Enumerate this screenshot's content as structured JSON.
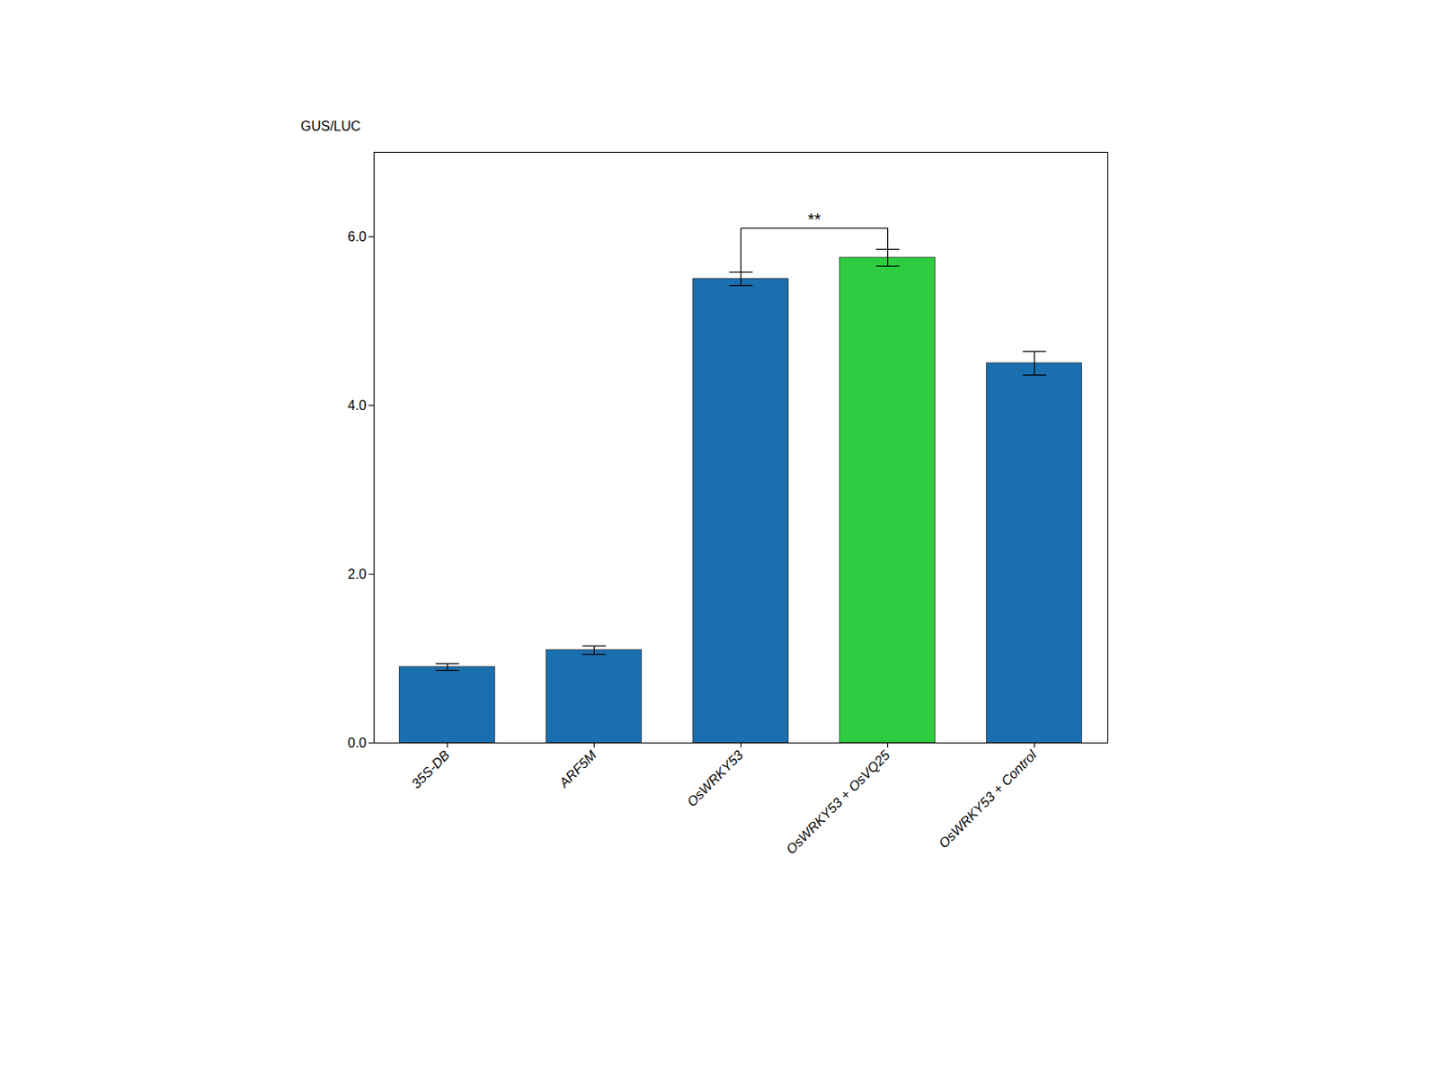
{
  "chart_data": {
    "type": "bar",
    "categories": [
      "35S-DB",
      "ARF5M",
      "OsWRKY53",
      "OsWRKY53 + OsVQ25",
      "OsWRKY53 + Control"
    ],
    "values": [
      0.9,
      1.1,
      5.5,
      5.75,
      4.5
    ],
    "errors": [
      0.04,
      0.05,
      0.08,
      0.1,
      0.14
    ],
    "colors": [
      "#1a6faf",
      "#1a6faf",
      "#1a6faf",
      "#2ecc40",
      "#1a6faf"
    ],
    "ylabel": "GUS/LUC",
    "ylim": [
      0,
      7
    ],
    "yticks": [
      0,
      2,
      4,
      6
    ],
    "grid": false,
    "annotations": [
      {
        "text": "**",
        "from": "OsWRKY53",
        "to": "OsWRKY53 + OsVQ25",
        "y": 6.1
      }
    ]
  }
}
